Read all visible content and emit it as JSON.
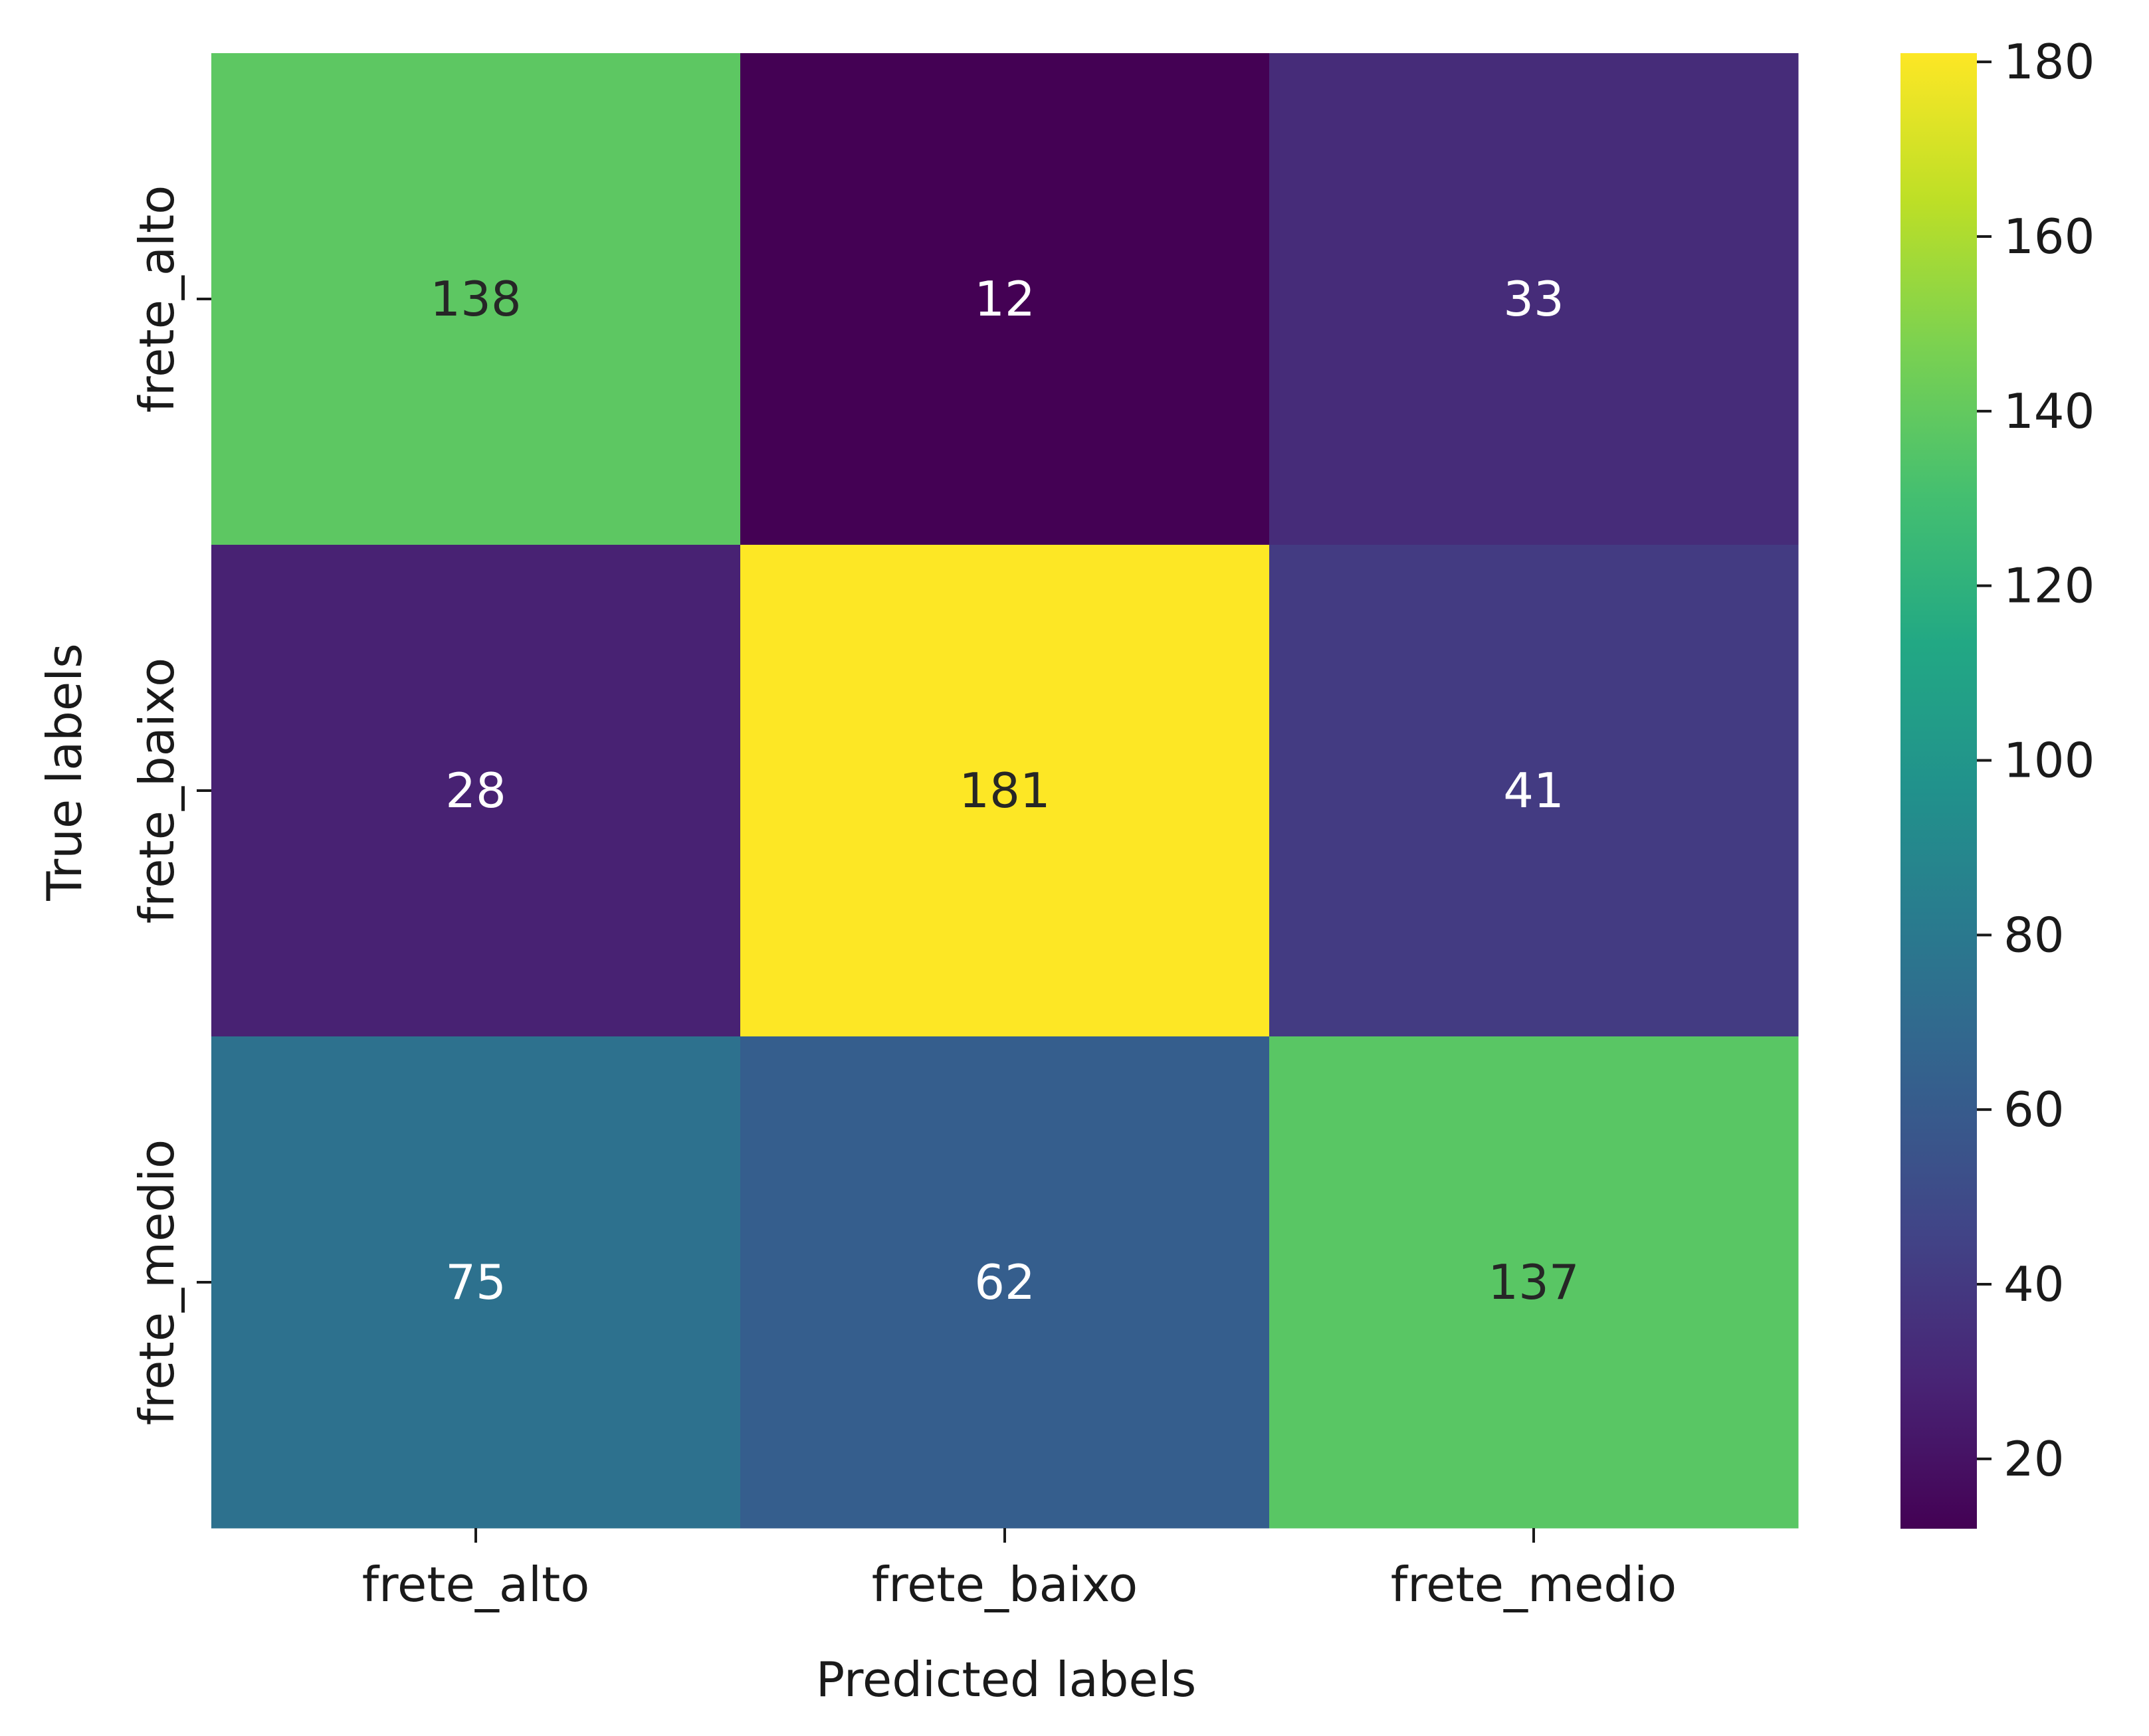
{
  "chart_data": {
    "type": "heatmap",
    "title": "",
    "xlabel": "Predicted labels",
    "ylabel": "True labels",
    "x_categories": [
      "frete_alto",
      "frete_baixo",
      "frete_medio"
    ],
    "y_categories": [
      "frete_alto",
      "frete_baixo",
      "frete_medio"
    ],
    "values": [
      [
        138,
        12,
        33
      ],
      [
        28,
        181,
        41
      ],
      [
        75,
        62,
        137
      ]
    ],
    "colormap": "viridis",
    "colorbar": {
      "min": 12,
      "max": 181,
      "ticks": [
        20,
        40,
        60,
        80,
        100,
        120,
        140,
        160,
        180
      ]
    },
    "annotation_colors": {
      "on_dark": "#ffffff",
      "on_light": "#262626"
    },
    "grid": false
  }
}
